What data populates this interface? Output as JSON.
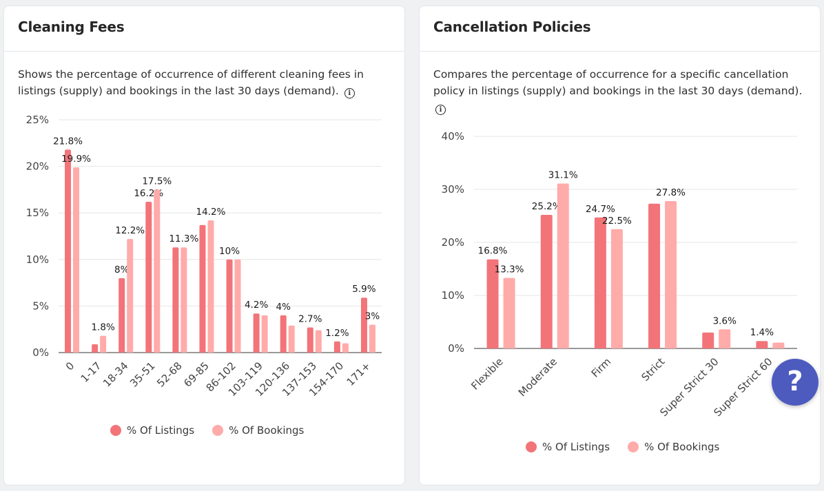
{
  "colors": {
    "listings": "#f27479",
    "bookings": "#ffabaa",
    "grid": "#e6e6e6",
    "help": "#4d5bbf"
  },
  "cleaning": {
    "title": "Cleaning Fees",
    "description": "Shows the percentage of occurrence of different cleaning fees in listings (supply) and bookings in the last 30 days (demand).",
    "legend_listings": "% Of Listings",
    "legend_bookings": "% Of Bookings"
  },
  "cancellation": {
    "title": "Cancellation Policies",
    "description": "Compares the percentage of occurrence for a specific cancellation policy in listings (supply) and bookings in the last 30 days (demand).",
    "legend_listings": "% Of Listings",
    "legend_bookings": "% Of Bookings"
  },
  "help": {
    "label": "?"
  },
  "chart_data": [
    {
      "type": "bar",
      "title": "Cleaning Fees",
      "categories": [
        "0",
        "1-17",
        "18-34",
        "35-51",
        "52-68",
        "69-85",
        "86-102",
        "103-119",
        "120-136",
        "137-153",
        "154-170",
        "171+"
      ],
      "series": [
        {
          "name": "% Of Listings",
          "values": [
            21.8,
            0.9,
            8,
            16.2,
            11.3,
            13.7,
            10,
            4.2,
            4,
            2.7,
            1.2,
            5.9
          ],
          "labels": [
            "21.8%",
            "",
            "8%",
            "16.2%",
            "",
            "",
            "10%",
            "4.2%",
            "4%",
            "2.7%",
            "1.2%",
            "5.9%"
          ]
        },
        {
          "name": "% Of Bookings",
          "values": [
            19.9,
            1.8,
            12.2,
            17.5,
            11.3,
            14.2,
            10,
            4,
            2.9,
            2.4,
            1,
            3
          ],
          "labels": [
            "19.9%",
            "1.8%",
            "12.2%",
            "17.5%",
            "11.3%",
            "14.2%",
            "",
            "",
            "",
            "",
            "",
            "3%"
          ]
        }
      ],
      "yticks": [
        "0%",
        "5%",
        "10%",
        "15%",
        "20%",
        "25%"
      ],
      "ylim": [
        0,
        25
      ],
      "legend": "bottom"
    },
    {
      "type": "bar",
      "title": "Cancellation Policies",
      "categories": [
        "Flexible",
        "Moderate",
        "Firm",
        "Strict",
        "Super Strict 30",
        "Super Strict 60"
      ],
      "series": [
        {
          "name": "% Of Listings",
          "values": [
            16.8,
            25.2,
            24.7,
            27.3,
            3,
            1.4
          ],
          "labels": [
            "16.8%",
            "25.2%",
            "24.7%",
            "",
            "",
            "1.4%"
          ]
        },
        {
          "name": "% Of Bookings",
          "values": [
            13.3,
            31.1,
            22.5,
            27.8,
            3.6,
            1.1
          ],
          "labels": [
            "13.3%",
            "31.1%",
            "22.5%",
            "27.8%",
            "3.6%",
            ""
          ]
        }
      ],
      "yticks": [
        "0%",
        "10%",
        "20%",
        "30%",
        "40%"
      ],
      "ylim": [
        0,
        40
      ],
      "legend": "bottom"
    }
  ]
}
